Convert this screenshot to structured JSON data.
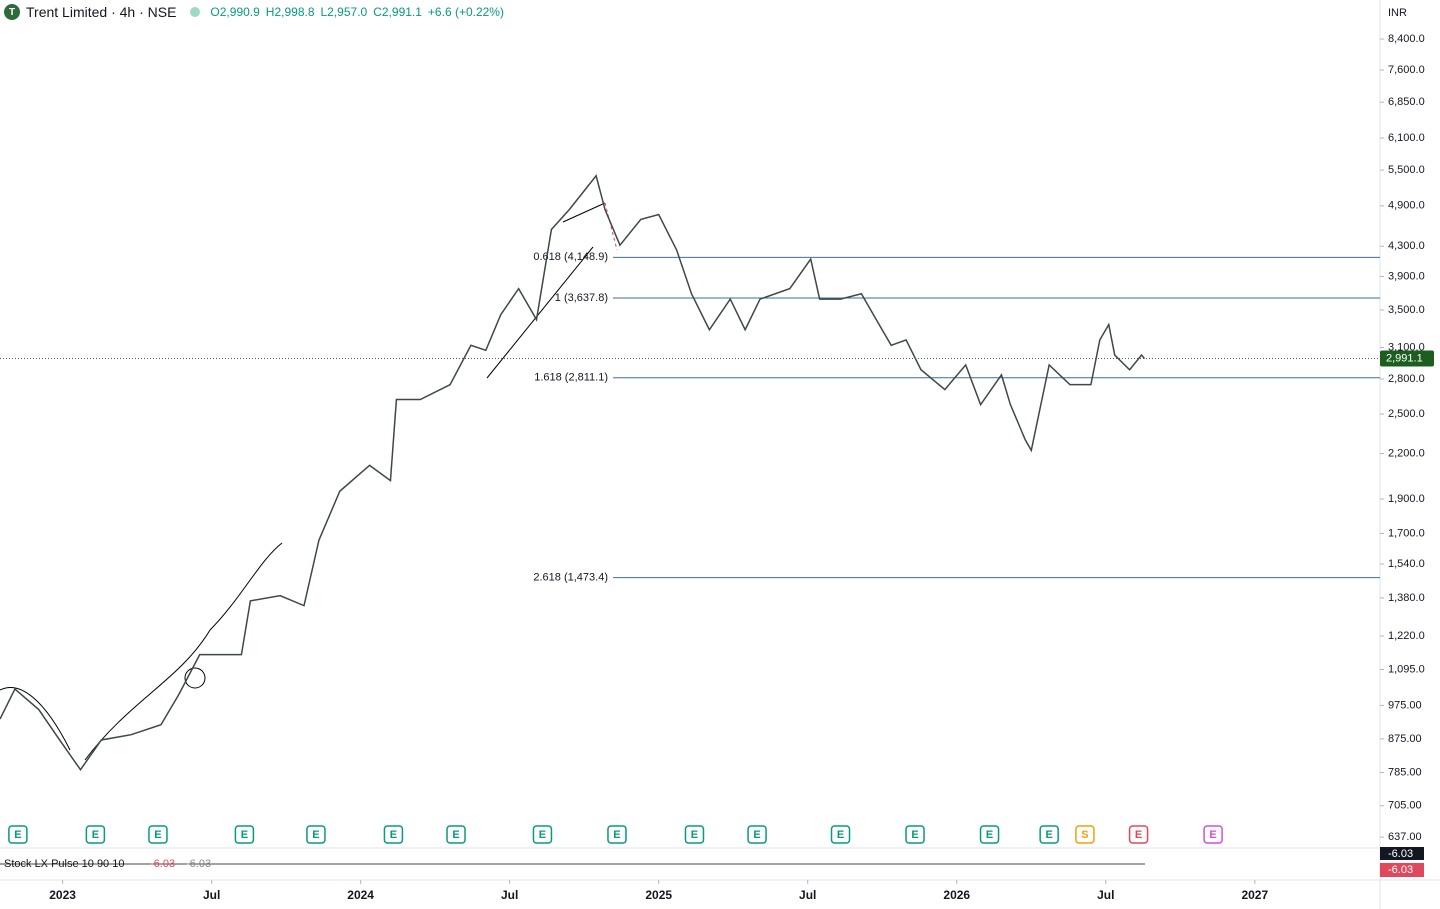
{
  "header": {
    "logo": "T",
    "symbol": "Trent Limited · 4h · NSE",
    "ohlc": [
      "O2,990.9",
      "H2,998.8",
      "L2,957.0",
      "C2,991.1",
      "+6.6 (+0.22%)"
    ],
    "currency": "INR"
  },
  "chart_data": {
    "type": "line",
    "log_scale": true,
    "color": "#3d4a3f",
    "x": [
      2022.79,
      2022.84,
      2022.92,
      2022.99,
      2023.06,
      2023.13,
      2023.23,
      2023.33,
      2023.39,
      2023.46,
      2023.6,
      2023.63,
      2023.73,
      2023.81,
      2023.86,
      2023.93,
      2024.03,
      2024.1,
      2024.12,
      2024.2,
      2024.3,
      2024.37,
      2024.42,
      2024.47,
      2024.53,
      2024.59,
      2024.64,
      2024.7,
      2024.79,
      2024.82,
      2024.87,
      2024.94,
      2025.0,
      2025.06,
      2025.11,
      2025.17,
      2025.24,
      2025.29,
      2025.34,
      2025.44,
      2025.51,
      2025.54,
      2025.61,
      2025.68,
      2025.73,
      2025.78,
      2025.83,
      2025.88,
      2025.96,
      2026.03,
      2026.08,
      2026.15,
      2026.18,
      2026.23,
      2026.25,
      2026.31,
      2026.38,
      2026.45,
      2026.48,
      2026.51,
      2026.53,
      2026.58,
      2026.62,
      2026.63
    ],
    "series": [
      {
        "name": "Trent Limited",
        "values": [
          933,
          1028,
          962,
          872,
          792,
          872,
          887,
          916,
          1010,
          1149,
          1149,
          1367,
          1390,
          1346,
          1663,
          1948,
          2118,
          2016,
          2620,
          2620,
          2749,
          3122,
          3072,
          3446,
          3750,
          3392,
          4540,
          4840,
          5400,
          4840,
          4315,
          4690,
          4765,
          4250,
          3688,
          3283,
          3625,
          3283,
          3625,
          3750,
          4125,
          3625,
          3625,
          3688,
          3392,
          3122,
          3177,
          2885,
          2706,
          2930,
          2577,
          2838,
          2577,
          2300,
          2223,
          2930,
          2749,
          2749,
          3177,
          3338,
          3025,
          2885,
          3025,
          2991.1
        ]
      }
    ],
    "last_price": {
      "value": 2991.1,
      "label": "2,991.1"
    },
    "levels": [
      {
        "value": 4148.9,
        "label": "0.618 (4,148.9)"
      },
      {
        "value": 3637.8,
        "label": "1 (3,637.8)"
      },
      {
        "value": 2811.1,
        "label": "1.618 (2,811.1)"
      },
      {
        "value": 1473.4,
        "label": "2.618 (1,473.4)"
      }
    ],
    "xlim": [
      2022.79,
      2027.42
    ],
    "ylim": [
      615,
      9530
    ],
    "xticks": [
      {
        "value": 2023,
        "label": "2023"
      },
      {
        "value": 2023.5,
        "label": "Jul"
      },
      {
        "value": 2024,
        "label": "2024"
      },
      {
        "value": 2024.5,
        "label": "Jul"
      },
      {
        "value": 2025,
        "label": "2025"
      },
      {
        "value": 2025.5,
        "label": "Jul"
      },
      {
        "value": 2026,
        "label": "2026"
      },
      {
        "value": 2026.5,
        "label": "Jul"
      },
      {
        "value": 2027,
        "label": "2027"
      }
    ],
    "yticks": [
      {
        "value": 8400,
        "label": "8,400.0"
      },
      {
        "value": 7600,
        "label": "7,600.0"
      },
      {
        "value": 6850,
        "label": "6,850.0"
      },
      {
        "value": 6100,
        "label": "6,100.0"
      },
      {
        "value": 5500,
        "label": "5,500.0"
      },
      {
        "value": 4900,
        "label": "4,900.0"
      },
      {
        "value": 4300,
        "label": "4,300.0"
      },
      {
        "value": 3900,
        "label": "3,900.0"
      },
      {
        "value": 3500,
        "label": "3,500.0"
      },
      {
        "value": 3100,
        "label": "3,100.0"
      },
      {
        "value": 2800,
        "label": "2,800.0"
      },
      {
        "value": 2500,
        "label": "2,500.0"
      },
      {
        "value": 2200,
        "label": "2,200.0"
      },
      {
        "value": 1900,
        "label": "1,900.0"
      },
      {
        "value": 1700,
        "label": "1,700.0"
      },
      {
        "value": 1540,
        "label": "1,540.0"
      },
      {
        "value": 1380,
        "label": "1,380.0"
      },
      {
        "value": 1220,
        "label": "1,220.0"
      },
      {
        "value": 1095,
        "label": "1,095.0"
      },
      {
        "value": 975,
        "label": "975.00"
      },
      {
        "value": 875,
        "label": "875.00"
      },
      {
        "value": 785,
        "label": "785.00"
      },
      {
        "value": 705,
        "label": "705.00"
      },
      {
        "value": 637,
        "label": "637.00"
      }
    ],
    "events": [
      {
        "x": 2022.85,
        "label": "E"
      },
      {
        "x": 2023.11,
        "label": "E"
      },
      {
        "x": 2023.32,
        "label": "E"
      },
      {
        "x": 2023.61,
        "label": "E"
      },
      {
        "x": 2023.85,
        "label": "E"
      },
      {
        "x": 2024.11,
        "label": "E"
      },
      {
        "x": 2024.32,
        "label": "E"
      },
      {
        "x": 2024.61,
        "label": "E"
      },
      {
        "x": 2024.86,
        "label": "E"
      },
      {
        "x": 2025.12,
        "label": "E"
      },
      {
        "x": 2025.33,
        "label": "E"
      },
      {
        "x": 2025.61,
        "label": "E"
      },
      {
        "x": 2025.86,
        "label": "E"
      },
      {
        "x": 2026.11,
        "label": "E"
      },
      {
        "x": 2026.31,
        "label": "E"
      },
      {
        "x": 2026.43,
        "label": "S",
        "color": "#f59d0b"
      },
      {
        "x": 2026.61,
        "label": "E",
        "color": "#e0495b"
      },
      {
        "x": 2026.86,
        "label": "E",
        "color": "#d04ee0"
      }
    ],
    "indicator": {
      "name": "Stock LX Pulse 10 90 10",
      "value": -6.03
    }
  }
}
